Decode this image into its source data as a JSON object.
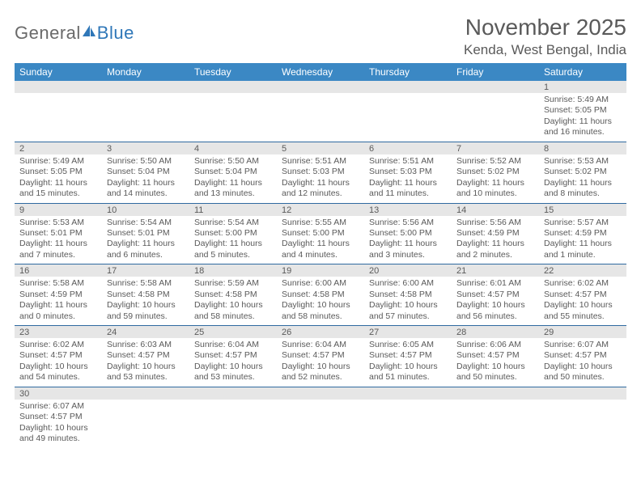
{
  "logo": {
    "part1": "General",
    "part2": "Blue",
    "color1": "#6a6a6a",
    "color2": "#2f77b8",
    "sailColor": "#2f77b8"
  },
  "header": {
    "title": "November 2025",
    "location": "Kenda, West Bengal, India"
  },
  "style": {
    "headerRowBg": "#3b88c4",
    "headerRowText": "#ffffff",
    "dayNumBg": "#e6e6e6",
    "textColor": "#5a5a5a",
    "rowDivider": "#2f6aa0",
    "columns": 7
  },
  "weekdays": [
    "Sunday",
    "Monday",
    "Tuesday",
    "Wednesday",
    "Thursday",
    "Friday",
    "Saturday"
  ],
  "days": [
    {
      "n": 1,
      "sunrise": "5:49 AM",
      "sunset": "5:05 PM",
      "dl": "11 hours and 16 minutes."
    },
    {
      "n": 2,
      "sunrise": "5:49 AM",
      "sunset": "5:05 PM",
      "dl": "11 hours and 15 minutes."
    },
    {
      "n": 3,
      "sunrise": "5:50 AM",
      "sunset": "5:04 PM",
      "dl": "11 hours and 14 minutes."
    },
    {
      "n": 4,
      "sunrise": "5:50 AM",
      "sunset": "5:04 PM",
      "dl": "11 hours and 13 minutes."
    },
    {
      "n": 5,
      "sunrise": "5:51 AM",
      "sunset": "5:03 PM",
      "dl": "11 hours and 12 minutes."
    },
    {
      "n": 6,
      "sunrise": "5:51 AM",
      "sunset": "5:03 PM",
      "dl": "11 hours and 11 minutes."
    },
    {
      "n": 7,
      "sunrise": "5:52 AM",
      "sunset": "5:02 PM",
      "dl": "11 hours and 10 minutes."
    },
    {
      "n": 8,
      "sunrise": "5:53 AM",
      "sunset": "5:02 PM",
      "dl": "11 hours and 8 minutes."
    },
    {
      "n": 9,
      "sunrise": "5:53 AM",
      "sunset": "5:01 PM",
      "dl": "11 hours and 7 minutes."
    },
    {
      "n": 10,
      "sunrise": "5:54 AM",
      "sunset": "5:01 PM",
      "dl": "11 hours and 6 minutes."
    },
    {
      "n": 11,
      "sunrise": "5:54 AM",
      "sunset": "5:00 PM",
      "dl": "11 hours and 5 minutes."
    },
    {
      "n": 12,
      "sunrise": "5:55 AM",
      "sunset": "5:00 PM",
      "dl": "11 hours and 4 minutes."
    },
    {
      "n": 13,
      "sunrise": "5:56 AM",
      "sunset": "5:00 PM",
      "dl": "11 hours and 3 minutes."
    },
    {
      "n": 14,
      "sunrise": "5:56 AM",
      "sunset": "4:59 PM",
      "dl": "11 hours and 2 minutes."
    },
    {
      "n": 15,
      "sunrise": "5:57 AM",
      "sunset": "4:59 PM",
      "dl": "11 hours and 1 minute."
    },
    {
      "n": 16,
      "sunrise": "5:58 AM",
      "sunset": "4:59 PM",
      "dl": "11 hours and 0 minutes."
    },
    {
      "n": 17,
      "sunrise": "5:58 AM",
      "sunset": "4:58 PM",
      "dl": "10 hours and 59 minutes."
    },
    {
      "n": 18,
      "sunrise": "5:59 AM",
      "sunset": "4:58 PM",
      "dl": "10 hours and 58 minutes."
    },
    {
      "n": 19,
      "sunrise": "6:00 AM",
      "sunset": "4:58 PM",
      "dl": "10 hours and 58 minutes."
    },
    {
      "n": 20,
      "sunrise": "6:00 AM",
      "sunset": "4:58 PM",
      "dl": "10 hours and 57 minutes."
    },
    {
      "n": 21,
      "sunrise": "6:01 AM",
      "sunset": "4:57 PM",
      "dl": "10 hours and 56 minutes."
    },
    {
      "n": 22,
      "sunrise": "6:02 AM",
      "sunset": "4:57 PM",
      "dl": "10 hours and 55 minutes."
    },
    {
      "n": 23,
      "sunrise": "6:02 AM",
      "sunset": "4:57 PM",
      "dl": "10 hours and 54 minutes."
    },
    {
      "n": 24,
      "sunrise": "6:03 AM",
      "sunset": "4:57 PM",
      "dl": "10 hours and 53 minutes."
    },
    {
      "n": 25,
      "sunrise": "6:04 AM",
      "sunset": "4:57 PM",
      "dl": "10 hours and 53 minutes."
    },
    {
      "n": 26,
      "sunrise": "6:04 AM",
      "sunset": "4:57 PM",
      "dl": "10 hours and 52 minutes."
    },
    {
      "n": 27,
      "sunrise": "6:05 AM",
      "sunset": "4:57 PM",
      "dl": "10 hours and 51 minutes."
    },
    {
      "n": 28,
      "sunrise": "6:06 AM",
      "sunset": "4:57 PM",
      "dl": "10 hours and 50 minutes."
    },
    {
      "n": 29,
      "sunrise": "6:07 AM",
      "sunset": "4:57 PM",
      "dl": "10 hours and 50 minutes."
    },
    {
      "n": 30,
      "sunrise": "6:07 AM",
      "sunset": "4:57 PM",
      "dl": "10 hours and 49 minutes."
    }
  ],
  "labels": {
    "sunrise": "Sunrise: ",
    "sunset": "Sunset: ",
    "daylight": "Daylight: "
  },
  "calendar": {
    "startWeekday": 6
  }
}
